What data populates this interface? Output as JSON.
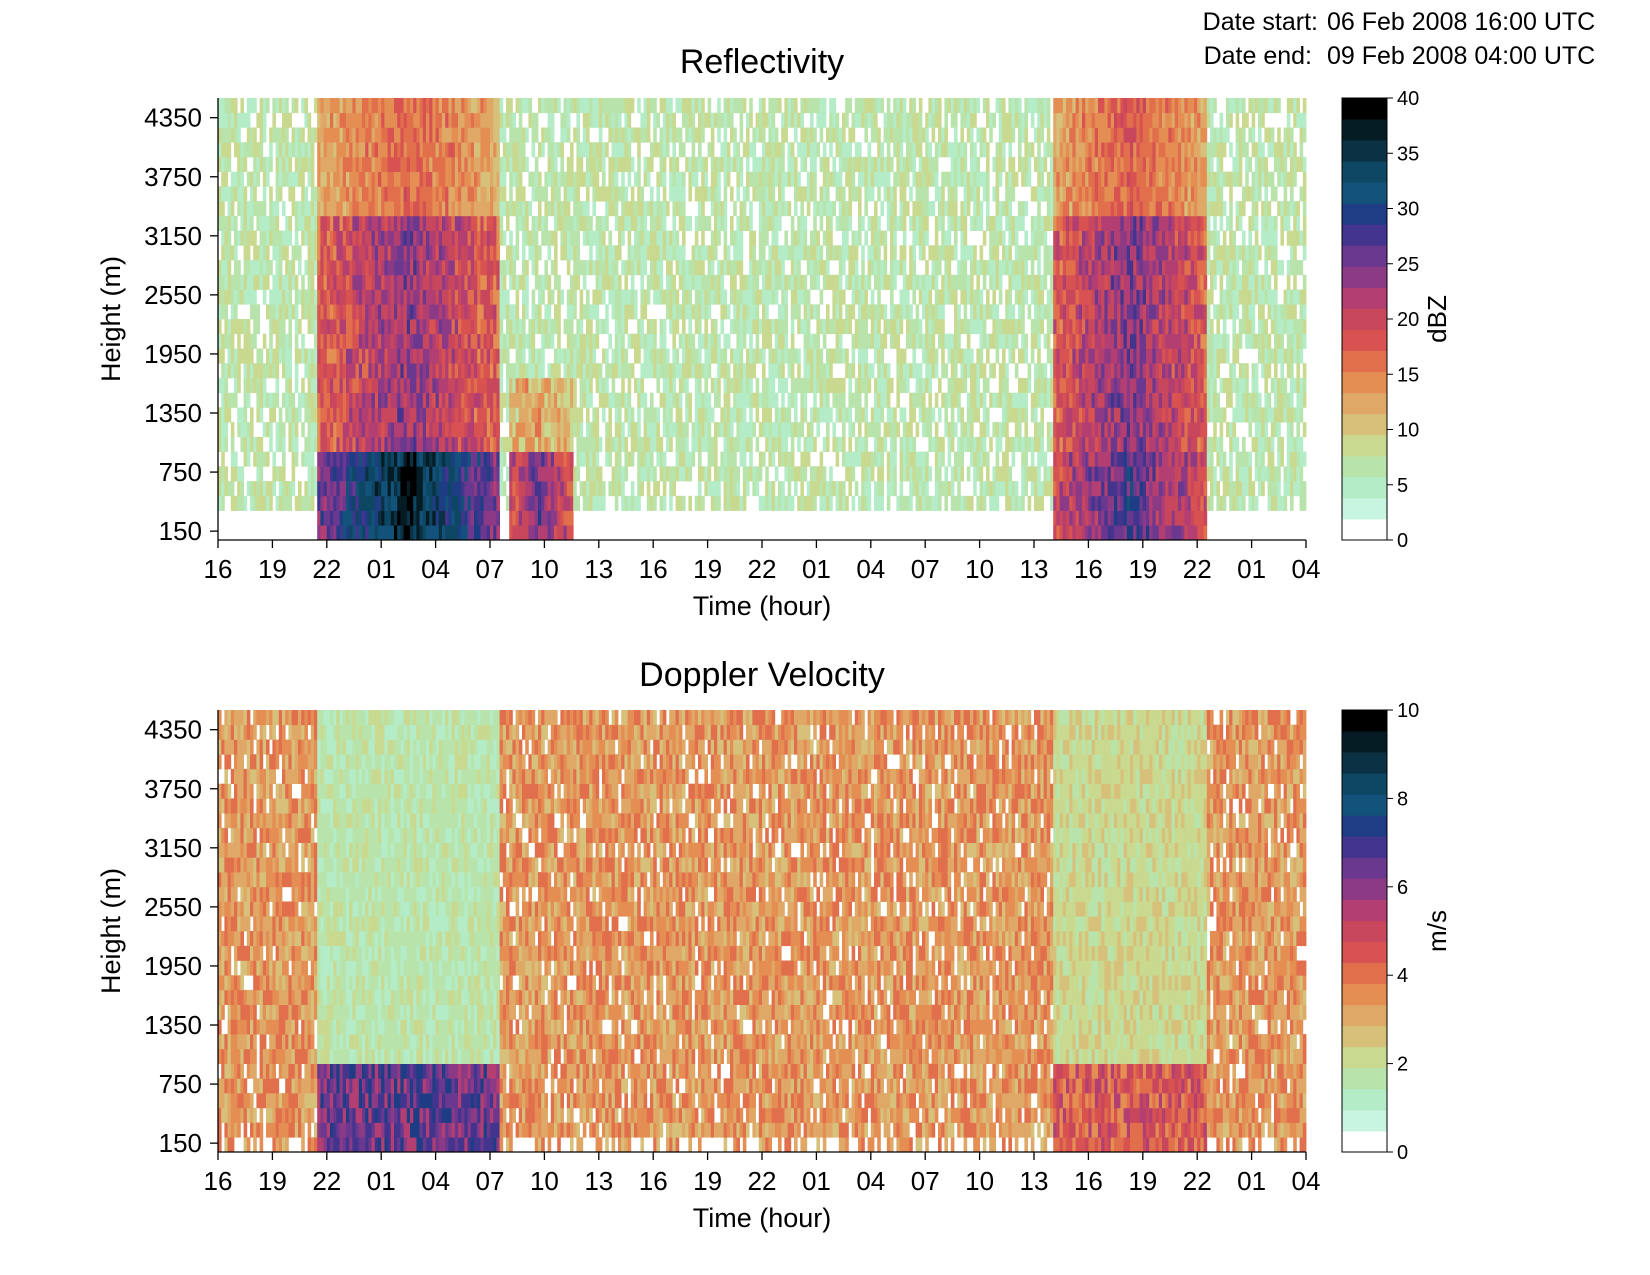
{
  "header": {
    "date_start_label": "Date start:",
    "date_start_value": "06 Feb 2008 16:00 UTC",
    "date_end_label": "Date end:",
    "date_end_value": "09 Feb 2008 04:00 UTC"
  },
  "colormap": [
    "#ffffff",
    "#c8f5e0",
    "#b4ecc8",
    "#b8e4ac",
    "#c9d98f",
    "#d6c07a",
    "#dfa866",
    "#e48e54",
    "#e16f4c",
    "#d75250",
    "#c8475c",
    "#b33f72",
    "#8c3a86",
    "#6b3890",
    "#43358e",
    "#1f3d85",
    "#13527a",
    "#0d4763",
    "#0a3244",
    "#061c25",
    "#000000"
  ],
  "chart_data": [
    {
      "type": "heatmap",
      "title": "Reflectivity",
      "xlabel": "Time (hour)",
      "ylabel": "Height (m)",
      "x_tick_labels": [
        "16",
        "19",
        "22",
        "01",
        "04",
        "07",
        "10",
        "13",
        "16",
        "19",
        "22",
        "01",
        "04",
        "07",
        "10",
        "13",
        "16",
        "19",
        "22",
        "01",
        "04"
      ],
      "x_range_hours": [
        0,
        60
      ],
      "y_tick_values": [
        150,
        750,
        1350,
        1950,
        2550,
        3150,
        3750,
        4350
      ],
      "y_range": [
        60,
        4550
      ],
      "colorbar": {
        "label": "dBZ",
        "min": 0,
        "max": 40,
        "ticks": [
          0,
          5,
          10,
          15,
          20,
          25,
          30,
          35,
          40
        ]
      },
      "precip_events": [
        {
          "start_h": 5.5,
          "end_h": 15.5,
          "peak_dbz_low": 38,
          "peak_dbz_mid": 24,
          "top_m": 4550
        },
        {
          "start_h": 16.0,
          "end_h": 19.5,
          "peak_dbz_low": 26,
          "peak_dbz_mid": 12,
          "top_m": 1700
        },
        {
          "start_h": 46.0,
          "end_h": 54.5,
          "peak_dbz_low": 28,
          "peak_dbz_mid": 25,
          "top_m": 4550
        }
      ],
      "background_dbz": [
        3,
        9
      ]
    },
    {
      "type": "heatmap",
      "title": "Doppler Velocity",
      "xlabel": "Time (hour)",
      "ylabel": "Height (m)",
      "x_tick_labels": [
        "16",
        "19",
        "22",
        "01",
        "04",
        "07",
        "10",
        "13",
        "16",
        "19",
        "22",
        "01",
        "04",
        "07",
        "10",
        "13",
        "16",
        "19",
        "22",
        "01",
        "04"
      ],
      "x_range_hours": [
        0,
        60
      ],
      "y_tick_values": [
        150,
        750,
        1350,
        1950,
        2550,
        3150,
        3750,
        4350
      ],
      "y_range": [
        60,
        4550
      ],
      "colorbar": {
        "label": "m/s",
        "min": 0,
        "max": 10,
        "ticks": [
          0,
          2,
          4,
          6,
          8,
          10
        ]
      },
      "regimes": [
        {
          "start_h": 5.5,
          "end_h": 15.5,
          "upper_ms": 1.5,
          "low_ms": 6.5
        },
        {
          "start_h": 46.0,
          "end_h": 54.5,
          "upper_ms": 2.0,
          "low_ms": 4.5
        }
      ],
      "background_ms": [
        2.5,
        4.2
      ]
    }
  ]
}
